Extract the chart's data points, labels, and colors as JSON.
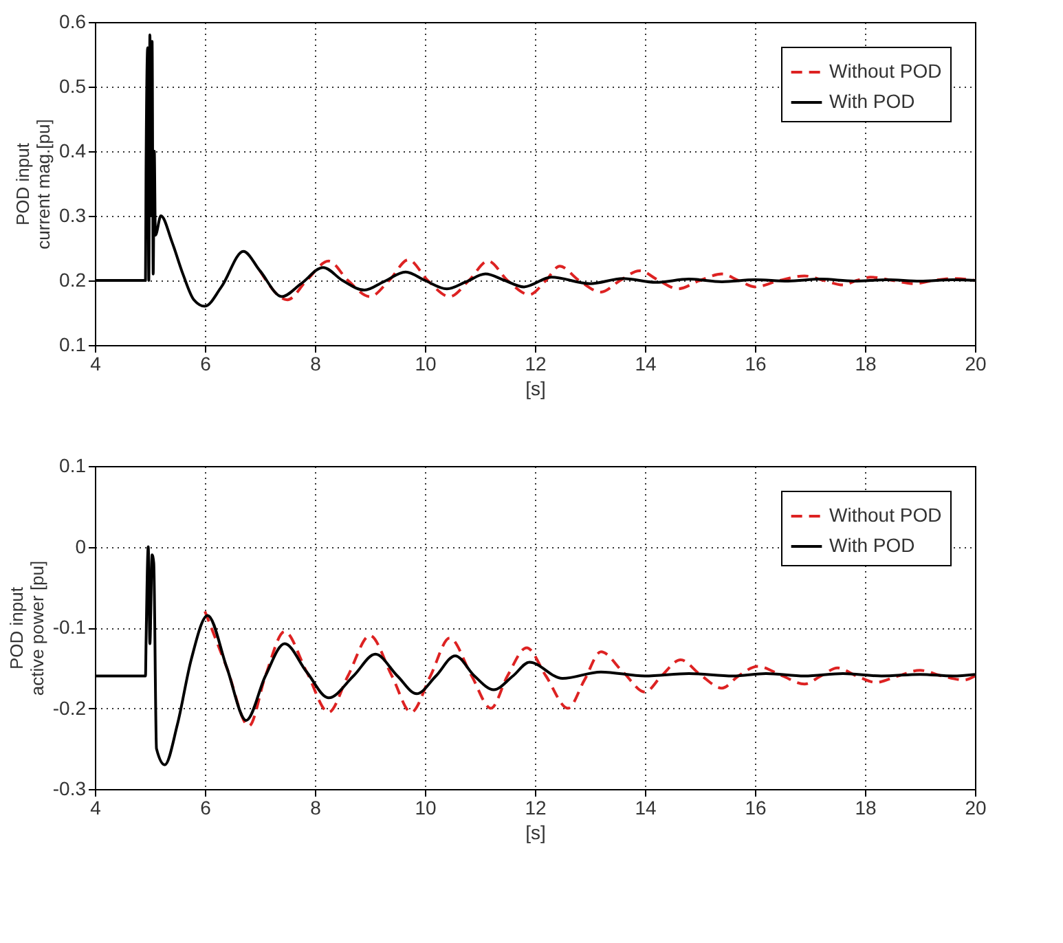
{
  "chart_data": [
    {
      "type": "line",
      "xlabel": "[s]",
      "ylabel": "POD input\ncurrent mag.[pu]",
      "xlim": [
        4,
        20
      ],
      "ylim": [
        0.1,
        0.6
      ],
      "xticks": [
        4,
        6,
        8,
        10,
        12,
        14,
        16,
        18,
        20
      ],
      "yticks": [
        0.1,
        0.2,
        0.3,
        0.4,
        0.5,
        0.6
      ],
      "grid": true,
      "legend": "top right",
      "series": [
        {
          "name": "Without POD",
          "color": "#dd2222",
          "line_style": "dashed",
          "x": [
            7.0,
            7.5,
            7.85,
            8.25,
            8.6,
            9.0,
            9.35,
            9.7,
            10.05,
            10.45,
            10.8,
            11.15,
            11.5,
            11.9,
            12.2,
            12.45,
            12.8,
            13.2,
            13.55,
            13.9,
            14.25,
            14.6,
            15.0,
            15.4,
            15.7,
            16.0,
            16.45,
            16.9,
            17.25,
            17.6,
            17.85,
            18.1,
            18.5,
            18.9,
            19.25,
            19.6,
            20
          ],
          "values": [
            0.215,
            0.17,
            0.2,
            0.23,
            0.2,
            0.175,
            0.2,
            0.232,
            0.2,
            0.175,
            0.2,
            0.23,
            0.2,
            0.178,
            0.2,
            0.222,
            0.2,
            0.182,
            0.2,
            0.215,
            0.2,
            0.187,
            0.2,
            0.21,
            0.2,
            0.19,
            0.2,
            0.207,
            0.2,
            0.193,
            0.2,
            0.205,
            0.2,
            0.195,
            0.2,
            0.203,
            0.2
          ]
        },
        {
          "name": "With POD",
          "color": "#000000",
          "line_style": "solid",
          "x": [
            4,
            4.92,
            4.93,
            4.96,
            4.98,
            5.0,
            5.02,
            5.04,
            5.06,
            5.08,
            5.1,
            5.2,
            5.4,
            5.6,
            5.8,
            6.0,
            6.3,
            6.7,
            7.0,
            7.4,
            7.75,
            8.15,
            8.5,
            8.9,
            9.25,
            9.65,
            10.0,
            10.4,
            10.75,
            11.1,
            11.45,
            11.8,
            12.3,
            13.0,
            13.6,
            14.2,
            14.8,
            15.4,
            16.0,
            16.6,
            17.2,
            17.8,
            18.4,
            19.0,
            19.6,
            20
          ],
          "values": [
            0.2,
            0.2,
            0.37,
            0.56,
            0.2,
            0.58,
            0.3,
            0.57,
            0.21,
            0.4,
            0.27,
            0.3,
            0.26,
            0.21,
            0.17,
            0.16,
            0.19,
            0.245,
            0.215,
            0.175,
            0.195,
            0.22,
            0.2,
            0.185,
            0.198,
            0.213,
            0.2,
            0.187,
            0.198,
            0.21,
            0.2,
            0.19,
            0.205,
            0.195,
            0.203,
            0.197,
            0.202,
            0.198,
            0.201,
            0.199,
            0.202,
            0.199,
            0.201,
            0.199,
            0.201,
            0.2
          ]
        }
      ]
    },
    {
      "type": "line",
      "xlabel": "[s]",
      "ylabel": "POD input\nactive power [pu]",
      "xlim": [
        4,
        20
      ],
      "ylim": [
        -0.3,
        0.1
      ],
      "xticks": [
        4,
        6,
        8,
        10,
        12,
        14,
        16,
        18,
        20
      ],
      "yticks": [
        -0.3,
        -0.2,
        -0.1,
        0,
        0.1
      ],
      "grid": true,
      "legend": "top right",
      "series": [
        {
          "name": "Without POD",
          "color": "#dd2222",
          "line_style": "dashed",
          "x": [
            6.0,
            6.4,
            6.8,
            7.1,
            7.45,
            7.85,
            8.25,
            8.6,
            9.0,
            9.4,
            9.75,
            10.1,
            10.45,
            10.85,
            11.2,
            11.5,
            11.85,
            12.2,
            12.6,
            12.9,
            13.2,
            13.6,
            14.0,
            14.3,
            14.65,
            15.0,
            15.4,
            15.7,
            16.05,
            16.5,
            16.9,
            17.2,
            17.5,
            17.85,
            18.2,
            18.6,
            19.0,
            19.4,
            19.8,
            20
          ],
          "values": [
            -0.08,
            -0.15,
            -0.222,
            -0.16,
            -0.105,
            -0.155,
            -0.205,
            -0.16,
            -0.11,
            -0.16,
            -0.205,
            -0.16,
            -0.113,
            -0.16,
            -0.2,
            -0.16,
            -0.125,
            -0.16,
            -0.2,
            -0.165,
            -0.13,
            -0.155,
            -0.18,
            -0.16,
            -0.14,
            -0.158,
            -0.175,
            -0.16,
            -0.148,
            -0.16,
            -0.17,
            -0.16,
            -0.15,
            -0.16,
            -0.168,
            -0.16,
            -0.153,
            -0.16,
            -0.165,
            -0.16
          ]
        },
        {
          "name": "With POD",
          "color": "#000000",
          "line_style": "solid",
          "x": [
            4,
            4.92,
            4.93,
            4.97,
            5.0,
            5.04,
            5.07,
            5.12,
            5.27,
            5.5,
            5.75,
            6.05,
            6.4,
            6.75,
            7.1,
            7.45,
            7.85,
            8.25,
            8.7,
            9.1,
            9.5,
            9.85,
            10.2,
            10.55,
            10.9,
            11.25,
            11.6,
            11.9,
            12.5,
            13.2,
            14.0,
            14.8,
            15.6,
            16.2,
            16.9,
            17.6,
            18.3,
            19.0,
            19.6,
            20
          ],
          "values": [
            -0.16,
            -0.16,
            -0.12,
            0.0,
            -0.12,
            -0.01,
            -0.02,
            -0.25,
            -0.27,
            -0.22,
            -0.14,
            -0.085,
            -0.15,
            -0.215,
            -0.16,
            -0.12,
            -0.155,
            -0.187,
            -0.16,
            -0.133,
            -0.16,
            -0.182,
            -0.16,
            -0.135,
            -0.16,
            -0.177,
            -0.16,
            -0.143,
            -0.163,
            -0.155,
            -0.16,
            -0.157,
            -0.16,
            -0.157,
            -0.16,
            -0.157,
            -0.16,
            -0.158,
            -0.16,
            -0.158
          ]
        }
      ]
    }
  ]
}
